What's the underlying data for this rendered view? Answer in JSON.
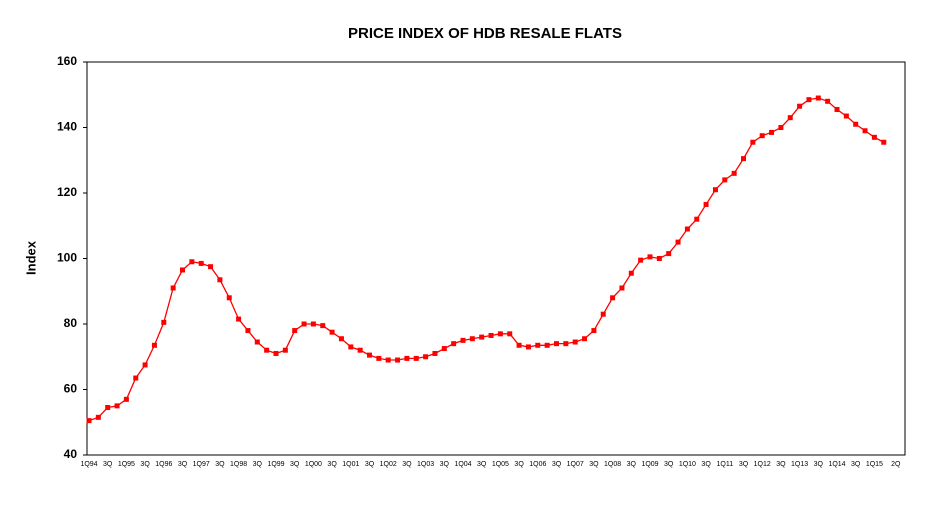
{
  "chart_data": {
    "type": "line",
    "title": "PRICE INDEX OF HDB RESALE FLATS",
    "y_label": "Index",
    "categories": [
      "1Q94",
      null,
      "3Q",
      null,
      "1Q95",
      null,
      "3Q",
      null,
      "1Q96",
      null,
      "3Q",
      null,
      "1Q97",
      null,
      "3Q",
      null,
      "1Q98",
      null,
      "3Q",
      null,
      "1Q99",
      null,
      "3Q",
      null,
      "1Q00",
      null,
      "3Q",
      null,
      "1Q01",
      null,
      "3Q",
      null,
      "1Q02",
      null,
      "3Q",
      null,
      "1Q03",
      null,
      "3Q",
      null,
      "1Q04",
      null,
      "3Q",
      null,
      "1Q05",
      null,
      "3Q",
      null,
      "1Q06",
      null,
      "3Q",
      null,
      "1Q07",
      null,
      "3Q",
      null,
      "1Q08",
      null,
      "3Q",
      null,
      "1Q09",
      null,
      "3Q",
      null,
      "1Q10",
      null,
      "3Q",
      null,
      "1Q11",
      null,
      "3Q",
      null,
      "1Q12",
      null,
      "3Q",
      null,
      "1Q13",
      null,
      "3Q",
      null,
      "1Q14",
      null,
      "3Q",
      null,
      "1Q15",
      "2Q"
    ],
    "series": [
      {
        "name": "Index",
        "color": "#ff0000",
        "values": [
          50.5,
          51.5,
          54.5,
          55,
          57,
          63.5,
          67.5,
          73.5,
          80.5,
          91,
          96.5,
          99,
          98.5,
          97.5,
          93.5,
          88,
          81.5,
          78,
          74.5,
          72,
          71,
          72,
          78,
          80,
          80,
          79.5,
          77.5,
          75.5,
          73,
          72,
          70.5,
          69.5,
          69,
          69,
          69.5,
          69.5,
          70,
          71,
          72.5,
          74,
          75,
          75.5,
          76,
          76.5,
          77,
          77,
          73.5,
          73,
          73.5,
          73.5,
          74,
          74,
          74.5,
          75.5,
          78,
          83,
          88,
          91,
          95.5,
          99.5,
          100.5,
          100,
          101.5,
          105,
          109,
          112,
          116.5,
          121,
          124,
          126,
          130.5,
          135.5,
          137.5,
          138.5,
          140,
          143,
          146.5,
          148.5,
          149,
          148,
          145.5,
          143.5,
          141,
          139,
          137,
          135.5
        ]
      }
    ],
    "ylim": [
      40,
      160
    ],
    "yticks": [
      40,
      60,
      80,
      100,
      120,
      140,
      160
    ],
    "grid": false
  }
}
